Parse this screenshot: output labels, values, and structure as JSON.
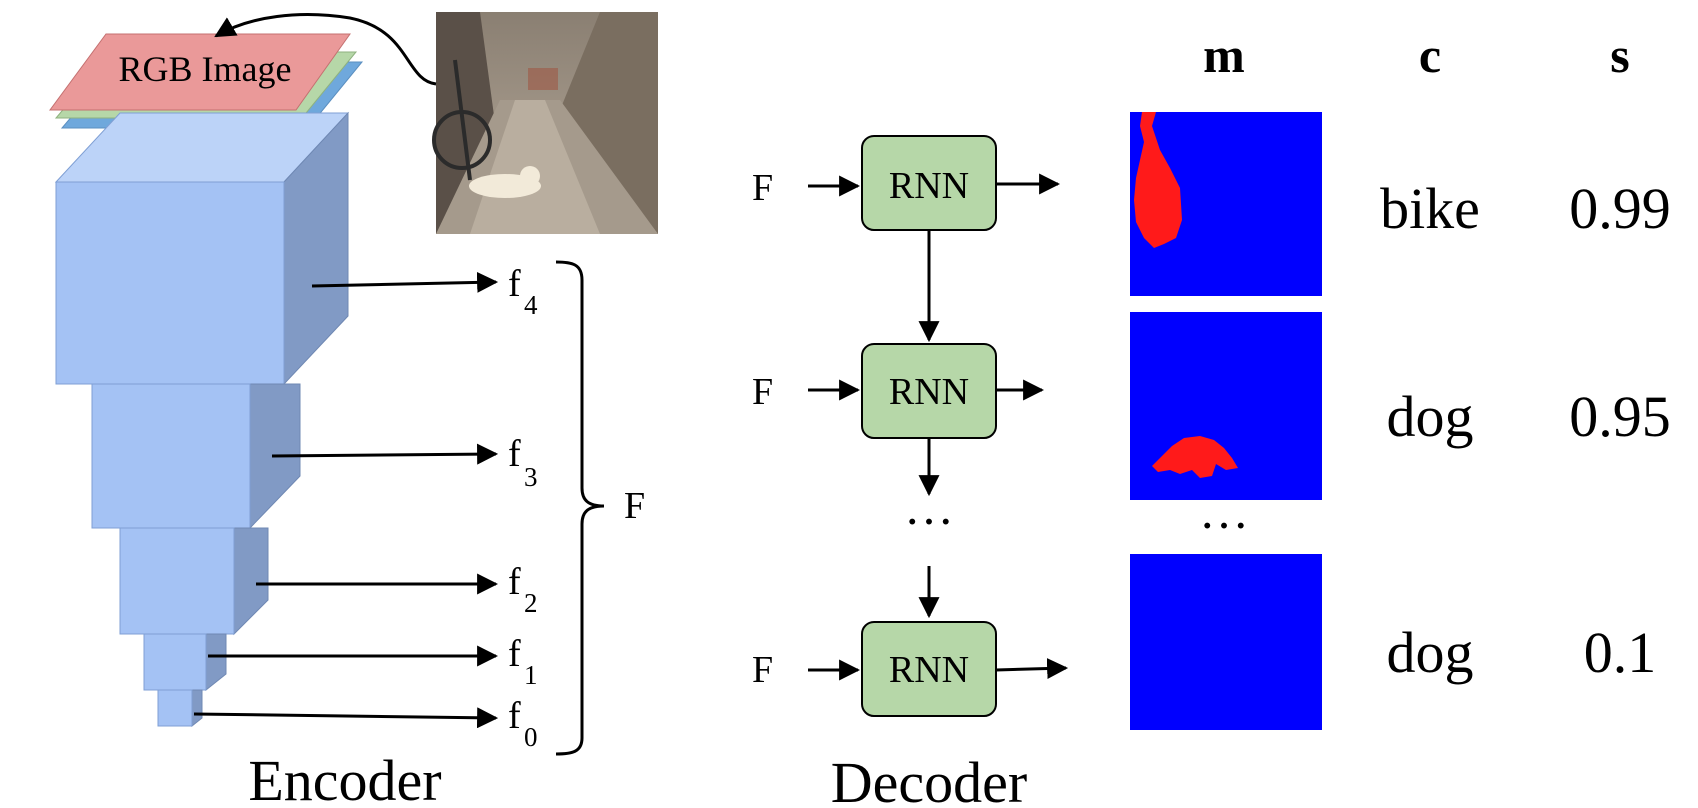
{
  "encoder": {
    "caption": "Encoder",
    "input_label": "RGB Image",
    "features": [
      {
        "letter": "f",
        "index": "4"
      },
      {
        "letter": "f",
        "index": "3"
      },
      {
        "letter": "f",
        "index": "2"
      },
      {
        "letter": "f",
        "index": "1"
      },
      {
        "letter": "f",
        "index": "0"
      }
    ],
    "group_label": "F",
    "colors": {
      "block_front": "#a4c2f4",
      "block_top": "#bcd3f8",
      "block_side": "#819ac5",
      "layer_red": "#ea9999",
      "layer_green": "#b6d7a8",
      "layer_blue": "#6fa8dc"
    }
  },
  "decoder": {
    "caption": "Decoder",
    "cell_label": "RNN",
    "input_label": "F",
    "ellipsis": "…",
    "colors": {
      "cell_fill": "#b6d7a8"
    }
  },
  "outputs": {
    "headers": {
      "m": "m",
      "c": "c",
      "s": "s"
    },
    "ellipsis": "…",
    "rows": [
      {
        "class": "bike",
        "score": "0.99"
      },
      {
        "class": "dog",
        "score": "0.95"
      },
      {
        "class": "dog",
        "score": "0.1"
      }
    ],
    "colors": {
      "mask_bg": "#0000ff",
      "mask_fg": "#ff1a1a"
    }
  }
}
